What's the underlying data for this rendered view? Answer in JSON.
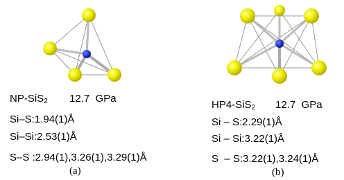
{
  "panels": [
    {
      "title": "NP-SiS",
      "title_sub": "2",
      "pressure": "12.7  GPa",
      "lines": [
        "Si–S:1.94(1)Å",
        "Si–Si:2.53(1)Å",
        "S–S :2.94(1),3.26(1),3.29(1)Å"
      ],
      "caption": "(a)"
    },
    {
      "title": "HP4-SiS",
      "title_sub": "2",
      "pressure": "12.7  GPa",
      "lines": [
        "Si – S:2.29(1)Å",
        "Si – Si:3.22(1)Å",
        "S  – S:3.22(1),3.24(1)Å"
      ],
      "caption": "(b)"
    }
  ]
}
